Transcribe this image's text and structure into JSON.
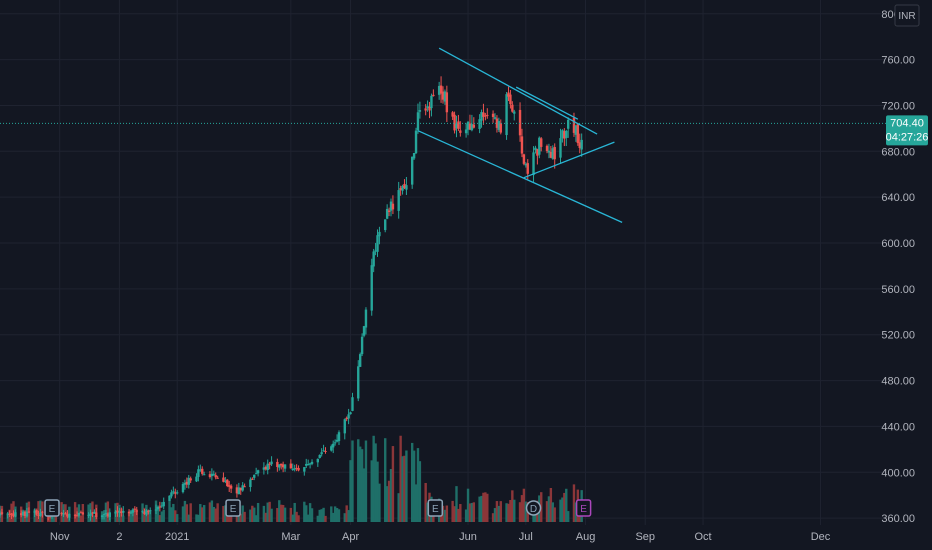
{
  "chart_data": {
    "type": "candlestick",
    "currency": "INR",
    "y_ticks": [
      800,
      760,
      720,
      680,
      640,
      600,
      560,
      520,
      480,
      440,
      400,
      360
    ],
    "y_tick_labels": [
      "800.00",
      "760.00",
      "720.00",
      "680.00",
      "640.00",
      "600.00",
      "560.00",
      "520.00",
      "480.00",
      "440.00",
      "400.00",
      "360.00"
    ],
    "ylim": [
      354,
      812
    ],
    "x_ticks": [
      {
        "label": "Nov",
        "date": "2020-11-01"
      },
      {
        "label": "2",
        "date": "2020-12-02"
      },
      {
        "label": "2021",
        "date": "2021-01-01"
      },
      {
        "label": "Mar",
        "date": "2021-03-01"
      },
      {
        "label": "Apr",
        "date": "2021-04-01"
      },
      {
        "label": "Jun",
        "date": "2021-06-01"
      },
      {
        "label": "Jul",
        "date": "2021-07-01"
      },
      {
        "label": "Aug",
        "date": "2021-08-01"
      },
      {
        "label": "Sep",
        "date": "2021-09-01"
      },
      {
        "label": "Oct",
        "date": "2021-10-01"
      },
      {
        "label": "Dec",
        "date": "2021-12-01"
      }
    ],
    "xlim": [
      "2020-10-01",
      "2022-01-04"
    ],
    "last_price": {
      "value": 704.4,
      "label": "704.40",
      "countdown": "04:27:26"
    },
    "colors": {
      "up": "#26a69a",
      "down": "#ef5350",
      "vol_up": "#1f6f68",
      "vol_down": "#8c3639",
      "trendline": "#29b6d6",
      "last_price": "#26a69a",
      "grid": "#1f2330",
      "background": "#131722",
      "text": "#b2b5be"
    },
    "price_anchors": [
      {
        "d": "2020-10-01",
        "p": 362
      },
      {
        "d": "2020-10-20",
        "p": 364
      },
      {
        "d": "2020-11-15",
        "p": 363
      },
      {
        "d": "2020-12-05",
        "p": 365
      },
      {
        "d": "2020-12-20",
        "p": 366
      },
      {
        "d": "2021-01-01",
        "p": 385
      },
      {
        "d": "2021-01-12",
        "p": 400
      },
      {
        "d": "2021-01-22",
        "p": 396
      },
      {
        "d": "2021-02-01",
        "p": 383
      },
      {
        "d": "2021-02-08",
        "p": 395
      },
      {
        "d": "2021-02-20",
        "p": 408
      },
      {
        "d": "2021-03-05",
        "p": 402
      },
      {
        "d": "2021-03-15",
        "p": 414
      },
      {
        "d": "2021-03-25",
        "p": 430
      },
      {
        "d": "2021-04-01",
        "p": 455
      },
      {
        "d": "2021-04-05",
        "p": 490
      },
      {
        "d": "2021-04-09",
        "p": 540
      },
      {
        "d": "2021-04-13",
        "p": 590
      },
      {
        "d": "2021-04-18",
        "p": 625
      },
      {
        "d": "2021-04-25",
        "p": 635
      },
      {
        "d": "2021-05-03",
        "p": 670
      },
      {
        "d": "2021-05-06",
        "p": 712
      },
      {
        "d": "2021-05-12",
        "p": 718
      },
      {
        "d": "2021-05-17",
        "p": 742
      },
      {
        "d": "2021-05-22",
        "p": 715
      },
      {
        "d": "2021-05-28",
        "p": 690
      },
      {
        "d": "2021-06-05",
        "p": 708
      },
      {
        "d": "2021-06-12",
        "p": 718
      },
      {
        "d": "2021-06-18",
        "p": 700
      },
      {
        "d": "2021-06-22",
        "p": 735
      },
      {
        "d": "2021-06-28",
        "p": 690
      },
      {
        "d": "2021-07-02",
        "p": 662
      },
      {
        "d": "2021-07-08",
        "p": 688
      },
      {
        "d": "2021-07-14",
        "p": 672
      },
      {
        "d": "2021-07-20",
        "p": 692
      },
      {
        "d": "2021-07-24",
        "p": 706
      },
      {
        "d": "2021-07-29",
        "p": 690
      },
      {
        "d": "2021-07-31",
        "p": 704.4
      }
    ],
    "trendlines": [
      {
        "name": "upper-channel",
        "start": {
          "d": "2021-05-17",
          "p": 770
        },
        "end": {
          "d": "2021-08-07",
          "p": 695
        }
      },
      {
        "name": "lower-channel",
        "start": {
          "d": "2021-05-06",
          "p": 698
        },
        "end": {
          "d": "2021-08-20",
          "p": 618
        }
      },
      {
        "name": "upper-triangle-line",
        "start": {
          "d": "2021-06-26",
          "p": 736
        },
        "end": {
          "d": "2021-07-28",
          "p": 708
        }
      },
      {
        "name": "lower-triangle-line",
        "start": {
          "d": "2021-06-30",
          "p": 657
        },
        "end": {
          "d": "2021-08-16",
          "p": 688
        }
      }
    ],
    "events": [
      {
        "type": "E",
        "date": "2020-10-28"
      },
      {
        "type": "E",
        "date": "2021-01-30"
      },
      {
        "type": "E",
        "date": "2021-05-15"
      },
      {
        "type": "D",
        "date": "2021-07-05"
      },
      {
        "type": "E",
        "date": "2021-07-31",
        "upcoming": true
      }
    ]
  }
}
